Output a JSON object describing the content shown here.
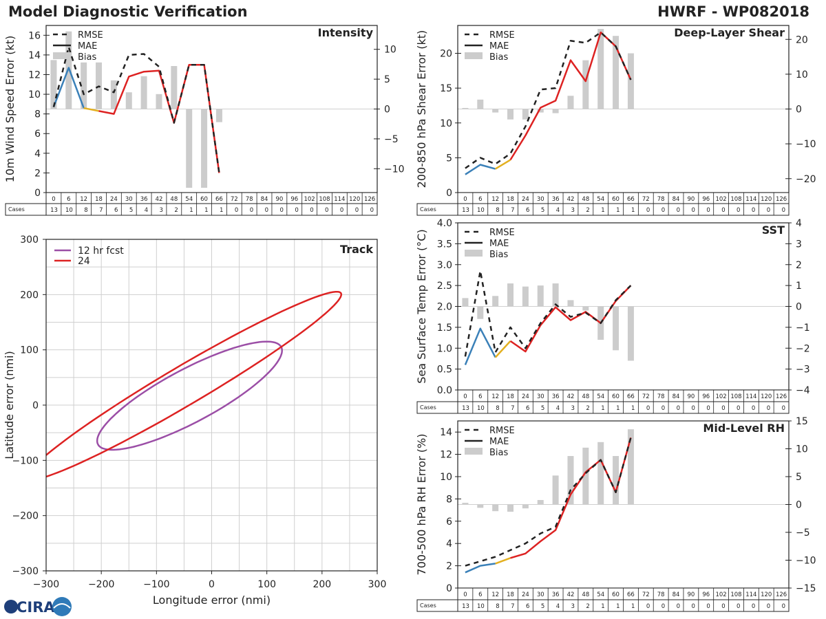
{
  "header": {
    "title": "Model Diagnostic Verification",
    "storm": "HWRF - WP082018",
    "logo_text": "CIRA"
  },
  "table": {
    "hours": [
      0,
      6,
      12,
      18,
      24,
      30,
      36,
      42,
      48,
      54,
      60,
      66,
      72,
      78,
      84,
      90,
      96,
      102,
      108,
      114,
      120,
      126
    ],
    "cases_label": "Cases",
    "cases": [
      13,
      10,
      8,
      7,
      6,
      5,
      4,
      3,
      2,
      1,
      1,
      1,
      0,
      0,
      0,
      0,
      0,
      0,
      0,
      0,
      0,
      0
    ]
  },
  "legend_labels": {
    "rmse": "RMSE",
    "mae": "MAE",
    "bias": "Bias"
  },
  "colors": {
    "rmse": "#222222",
    "mae_early": "#3a80b8",
    "mae_mid": "#e3b020",
    "mae_late": "#dd2222",
    "bias": "#cccccc",
    "ellipse12": "#9b4ea6",
    "ellipse24": "#dd2222"
  },
  "chart_data": [
    {
      "id": "intensity",
      "type": "line",
      "title": "Intensity",
      "xlabel": "",
      "ylabel": "10m Wind Speed Error (kt)",
      "ylim": [
        0,
        17
      ],
      "yticks": [
        0,
        2,
        4,
        6,
        8,
        10,
        12,
        14,
        16
      ],
      "y2lim": [
        -14,
        14
      ],
      "y2ticks": [
        -10,
        -5,
        0,
        5,
        10
      ],
      "x": [
        0,
        6,
        12,
        18,
        24,
        30,
        36,
        42,
        48,
        54,
        60,
        66
      ],
      "rmse": [
        8.7,
        14.8,
        10.0,
        10.8,
        10.2,
        14.0,
        14.1,
        12.8,
        7.1,
        13.0,
        13.0,
        2.0
      ],
      "mae": [
        8.7,
        12.7,
        8.6,
        8.3,
        8.0,
        11.8,
        12.3,
        12.4,
        7.1,
        13.0,
        13.0,
        2.0
      ],
      "bias": [
        8.2,
        13.0,
        7.8,
        7.8,
        4.8,
        2.8,
        5.5,
        2.5,
        7.2,
        -13.2,
        -13.2,
        -2.2
      ]
    },
    {
      "id": "shear",
      "type": "line",
      "title": "Deep-Layer Shear",
      "xlabel": "",
      "ylabel": "200-850 hPa Shear Error (kt)",
      "ylim": [
        0,
        24
      ],
      "yticks": [
        0,
        5,
        10,
        15,
        20
      ],
      "y2lim": [
        -24,
        24
      ],
      "y2ticks": [
        -20,
        -10,
        0,
        10,
        20
      ],
      "x": [
        0,
        6,
        12,
        18,
        24,
        30,
        36,
        42,
        48,
        54,
        60,
        66
      ],
      "rmse": [
        3.5,
        5.0,
        4.1,
        5.6,
        9.5,
        14.8,
        15.0,
        21.8,
        21.5,
        23.0,
        21.0,
        16.2
      ],
      "mae": [
        2.6,
        4.0,
        3.4,
        4.7,
        8.2,
        12.2,
        13.2,
        19.0,
        16.0,
        23.0,
        21.0,
        16.2
      ],
      "bias": [
        0.3,
        2.7,
        -1.0,
        -3.0,
        -3.0,
        -1.0,
        -1.2,
        3.8,
        14.0,
        23.0,
        21.0,
        16.0
      ]
    },
    {
      "id": "sst",
      "type": "line",
      "title": "SST",
      "xlabel": "",
      "ylabel": "Sea Surface Temp Error (°C)",
      "ylim": [
        0,
        4
      ],
      "yticks": [
        0.0,
        0.5,
        1.0,
        1.5,
        2.0,
        2.5,
        3.0,
        3.5,
        4.0
      ],
      "y2lim": [
        -4,
        4
      ],
      "y2ticks": [
        -4,
        -3,
        -2,
        -1,
        0,
        1,
        2,
        3,
        4
      ],
      "x": [
        0,
        6,
        12,
        18,
        24,
        30,
        36,
        42,
        48,
        54,
        60,
        66
      ],
      "rmse": [
        0.8,
        2.85,
        0.9,
        1.5,
        1.0,
        1.6,
        2.05,
        1.75,
        1.85,
        1.6,
        2.15,
        2.5
      ],
      "mae": [
        0.6,
        1.47,
        0.78,
        1.17,
        0.92,
        1.55,
        1.98,
        1.67,
        1.87,
        1.6,
        2.13,
        2.5
      ],
      "bias": [
        0.4,
        -0.6,
        0.5,
        1.1,
        0.95,
        1.0,
        1.1,
        0.3,
        -0.2,
        -1.6,
        -2.1,
        -2.6
      ]
    },
    {
      "id": "rh",
      "type": "line",
      "title": "Mid-Level RH",
      "xlabel": "",
      "ylabel": "700-500 hPa RH Error (%)",
      "ylim": [
        0,
        15
      ],
      "yticks": [
        0,
        2,
        4,
        6,
        8,
        10,
        12,
        14
      ],
      "y2lim": [
        -15,
        15
      ],
      "y2ticks": [
        -15,
        -10,
        -5,
        0,
        5,
        10,
        15
      ],
      "x": [
        0,
        6,
        12,
        18,
        24,
        30,
        36,
        42,
        48,
        54,
        60,
        66
      ],
      "rmse": [
        2.0,
        2.4,
        2.8,
        3.4,
        4.0,
        4.9,
        5.5,
        8.8,
        10.3,
        11.5,
        8.6,
        13.5
      ],
      "mae": [
        1.4,
        2.0,
        2.2,
        2.7,
        3.1,
        4.2,
        5.2,
        8.4,
        10.4,
        11.5,
        8.6,
        13.5
      ],
      "bias": [
        0.3,
        -0.6,
        -1.2,
        -1.3,
        -0.7,
        0.8,
        5.2,
        8.7,
        10.2,
        11.2,
        8.7,
        13.5
      ]
    },
    {
      "id": "track",
      "type": "scatter",
      "title": "Track",
      "xlabel": "Longitude error (nmi)",
      "ylabel": "Latitude error (nmi)",
      "xlim": [
        -300,
        300
      ],
      "ylim": [
        -300,
        300
      ],
      "xticks": [
        -300,
        -200,
        -100,
        0,
        100,
        200,
        300
      ],
      "yticks": [
        -300,
        -200,
        -100,
        0,
        100,
        200,
        300
      ],
      "legend": [
        "12 hr fcst",
        "24"
      ],
      "ellipses": [
        {
          "name": "12 hr fcst",
          "cx": -40,
          "cy": 17,
          "a": 188,
          "b": 48,
          "angle_deg": 28
        },
        {
          "name": "24",
          "cx": -50,
          "cy": 35,
          "a": 330,
          "b": 35,
          "angle_deg": 30.5
        }
      ]
    }
  ]
}
